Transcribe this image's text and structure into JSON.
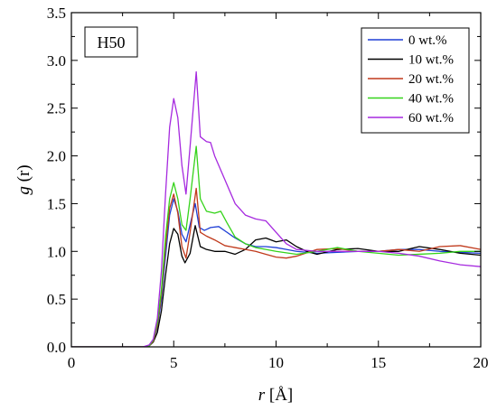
{
  "chart_data": {
    "type": "line",
    "title": "",
    "annotation": "H50",
    "xlabel_italic": "r",
    "xlabel_unit": " [Å]",
    "ylabel_italic": "g",
    "ylabel_rest": " (r)",
    "xlim": [
      0,
      20
    ],
    "ylim": [
      0,
      3.5
    ],
    "xticks": [
      "0",
      "5",
      "10",
      "15",
      "20"
    ],
    "yticks": [
      "0.0",
      "0.5",
      "1.0",
      "1.5",
      "2.0",
      "2.5",
      "3.0",
      "3.5"
    ],
    "grid": false,
    "legend_position": "top-right",
    "series": [
      {
        "name": "0 wt.%",
        "color": "#1f3fd6",
        "points": [
          [
            0,
            0
          ],
          [
            3.5,
            0
          ],
          [
            3.8,
            0.01
          ],
          [
            4.0,
            0.06
          ],
          [
            4.2,
            0.2
          ],
          [
            4.4,
            0.5
          ],
          [
            4.6,
            0.95
          ],
          [
            4.8,
            1.38
          ],
          [
            5.0,
            1.55
          ],
          [
            5.2,
            1.42
          ],
          [
            5.4,
            1.18
          ],
          [
            5.6,
            1.1
          ],
          [
            5.8,
            1.28
          ],
          [
            6.05,
            1.5
          ],
          [
            6.25,
            1.25
          ],
          [
            6.5,
            1.22
          ],
          [
            6.8,
            1.25
          ],
          [
            7.2,
            1.26
          ],
          [
            7.6,
            1.2
          ],
          [
            8.0,
            1.14
          ],
          [
            8.5,
            1.08
          ],
          [
            9.0,
            1.05
          ],
          [
            9.5,
            1.05
          ],
          [
            10.0,
            1.04
          ],
          [
            10.5,
            1.02
          ],
          [
            11.0,
            1.0
          ],
          [
            12.0,
            0.98
          ],
          [
            13.0,
            0.99
          ],
          [
            14.0,
            1.0
          ],
          [
            15.0,
            1.0
          ],
          [
            16.0,
            1.02
          ],
          [
            17.0,
            1.02
          ],
          [
            18.0,
            1.0
          ],
          [
            19.0,
            0.99
          ],
          [
            20.0,
            0.98
          ]
        ]
      },
      {
        "name": "10 wt.%",
        "color": "#000000",
        "points": [
          [
            0,
            0
          ],
          [
            3.5,
            0
          ],
          [
            3.8,
            0.01
          ],
          [
            4.0,
            0.05
          ],
          [
            4.2,
            0.15
          ],
          [
            4.4,
            0.38
          ],
          [
            4.6,
            0.75
          ],
          [
            4.8,
            1.08
          ],
          [
            5.0,
            1.24
          ],
          [
            5.2,
            1.18
          ],
          [
            5.4,
            0.95
          ],
          [
            5.55,
            0.88
          ],
          [
            5.8,
            0.98
          ],
          [
            6.05,
            1.27
          ],
          [
            6.3,
            1.05
          ],
          [
            6.6,
            1.02
          ],
          [
            7.0,
            1.0
          ],
          [
            7.5,
            1.0
          ],
          [
            8.0,
            0.97
          ],
          [
            8.5,
            1.02
          ],
          [
            9.0,
            1.12
          ],
          [
            9.5,
            1.14
          ],
          [
            10.0,
            1.1
          ],
          [
            10.5,
            1.12
          ],
          [
            11.0,
            1.05
          ],
          [
            11.5,
            1.0
          ],
          [
            12.0,
            0.97
          ],
          [
            13.0,
            1.02
          ],
          [
            14.0,
            1.03
          ],
          [
            15.0,
            1.0
          ],
          [
            16.0,
            1.0
          ],
          [
            17.0,
            1.05
          ],
          [
            18.0,
            1.02
          ],
          [
            19.0,
            0.98
          ],
          [
            20.0,
            0.96
          ]
        ]
      },
      {
        "name": "20 wt.%",
        "color": "#c0391b",
        "points": [
          [
            0,
            0
          ],
          [
            3.5,
            0
          ],
          [
            3.8,
            0.01
          ],
          [
            4.0,
            0.06
          ],
          [
            4.2,
            0.22
          ],
          [
            4.4,
            0.55
          ],
          [
            4.6,
            1.05
          ],
          [
            4.8,
            1.45
          ],
          [
            5.0,
            1.6
          ],
          [
            5.2,
            1.4
          ],
          [
            5.4,
            1.05
          ],
          [
            5.6,
            0.93
          ],
          [
            5.8,
            1.2
          ],
          [
            6.1,
            1.66
          ],
          [
            6.3,
            1.2
          ],
          [
            6.6,
            1.16
          ],
          [
            7.0,
            1.12
          ],
          [
            7.5,
            1.06
          ],
          [
            8.0,
            1.04
          ],
          [
            8.5,
            1.02
          ],
          [
            9.0,
            1.0
          ],
          [
            9.5,
            0.97
          ],
          [
            10.0,
            0.94
          ],
          [
            10.5,
            0.93
          ],
          [
            11.0,
            0.95
          ],
          [
            12.0,
            1.02
          ],
          [
            13.0,
            1.03
          ],
          [
            14.0,
            1.0
          ],
          [
            15.0,
            1.0
          ],
          [
            16.0,
            1.02
          ],
          [
            17.0,
            1.0
          ],
          [
            18.0,
            1.05
          ],
          [
            19.0,
            1.06
          ],
          [
            20.0,
            1.02
          ]
        ]
      },
      {
        "name": "40 wt.%",
        "color": "#35d31a",
        "points": [
          [
            0,
            0
          ],
          [
            3.5,
            0
          ],
          [
            3.8,
            0.01
          ],
          [
            4.0,
            0.07
          ],
          [
            4.2,
            0.25
          ],
          [
            4.4,
            0.6
          ],
          [
            4.6,
            1.15
          ],
          [
            4.8,
            1.55
          ],
          [
            5.0,
            1.72
          ],
          [
            5.2,
            1.55
          ],
          [
            5.4,
            1.28
          ],
          [
            5.6,
            1.22
          ],
          [
            5.8,
            1.55
          ],
          [
            6.1,
            2.1
          ],
          [
            6.3,
            1.55
          ],
          [
            6.6,
            1.42
          ],
          [
            7.0,
            1.4
          ],
          [
            7.3,
            1.42
          ],
          [
            7.6,
            1.3
          ],
          [
            8.0,
            1.15
          ],
          [
            8.5,
            1.08
          ],
          [
            9.0,
            1.04
          ],
          [
            9.5,
            1.02
          ],
          [
            10.0,
            1.0
          ],
          [
            11.0,
            0.97
          ],
          [
            12.0,
            1.0
          ],
          [
            13.0,
            1.04
          ],
          [
            14.0,
            1.0
          ],
          [
            15.0,
            0.98
          ],
          [
            16.0,
            0.96
          ],
          [
            17.0,
            0.97
          ],
          [
            18.0,
            0.98
          ],
          [
            19.0,
            1.0
          ],
          [
            20.0,
            1.0
          ]
        ]
      },
      {
        "name": "60 wt.%",
        "color": "#a62adf",
        "points": [
          [
            0,
            0
          ],
          [
            3.5,
            0
          ],
          [
            3.8,
            0.02
          ],
          [
            4.0,
            0.08
          ],
          [
            4.2,
            0.3
          ],
          [
            4.4,
            0.8
          ],
          [
            4.6,
            1.6
          ],
          [
            4.8,
            2.3
          ],
          [
            5.0,
            2.6
          ],
          [
            5.2,
            2.4
          ],
          [
            5.4,
            1.9
          ],
          [
            5.6,
            1.6
          ],
          [
            5.8,
            2.1
          ],
          [
            6.1,
            2.88
          ],
          [
            6.3,
            2.2
          ],
          [
            6.6,
            2.15
          ],
          [
            6.8,
            2.14
          ],
          [
            7.0,
            2.0
          ],
          [
            7.5,
            1.75
          ],
          [
            8.0,
            1.5
          ],
          [
            8.5,
            1.38
          ],
          [
            9.0,
            1.34
          ],
          [
            9.5,
            1.32
          ],
          [
            10.0,
            1.2
          ],
          [
            10.5,
            1.08
          ],
          [
            11.0,
            1.02
          ],
          [
            12.0,
            1.0
          ],
          [
            13.0,
            1.0
          ],
          [
            14.0,
            1.0
          ],
          [
            15.0,
            1.0
          ],
          [
            16.0,
            0.98
          ],
          [
            17.0,
            0.95
          ],
          [
            18.0,
            0.9
          ],
          [
            19.0,
            0.86
          ],
          [
            20.0,
            0.84
          ]
        ]
      }
    ]
  }
}
